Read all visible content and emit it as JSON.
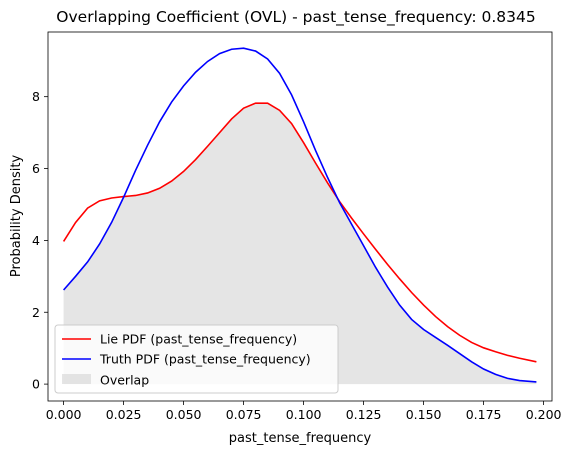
{
  "chart_data": {
    "type": "line",
    "title": "Overlapping Coefficient (OVL) - past_tense_frequency: 0.8345",
    "xlabel": "past_tense_frequency",
    "ylabel": "Probability Density",
    "xlim": [
      -0.0065,
      0.2035
    ],
    "ylim": [
      -0.47,
      9.8
    ],
    "xticks": [
      0.0,
      0.025,
      0.05,
      0.075,
      0.1,
      0.125,
      0.15,
      0.175,
      0.2
    ],
    "xtick_labels": [
      "0.000",
      "0.025",
      "0.050",
      "0.075",
      "0.100",
      "0.125",
      "0.150",
      "0.175",
      "0.200"
    ],
    "yticks": [
      0,
      2,
      4,
      6,
      8
    ],
    "ytick_labels": [
      "0",
      "2",
      "4",
      "6",
      "8"
    ],
    "grid": false,
    "legend_position": "lower-left",
    "series": [
      {
        "name": "Lie PDF (past_tense_frequency)",
        "color": "#ff0000",
        "x": [
          0.0,
          0.005,
          0.01,
          0.015,
          0.02,
          0.025,
          0.03,
          0.035,
          0.04,
          0.045,
          0.05,
          0.055,
          0.06,
          0.065,
          0.07,
          0.075,
          0.08,
          0.085,
          0.09,
          0.095,
          0.1,
          0.105,
          0.11,
          0.115,
          0.12,
          0.125,
          0.13,
          0.135,
          0.14,
          0.145,
          0.15,
          0.155,
          0.16,
          0.165,
          0.17,
          0.175,
          0.18,
          0.185,
          0.19,
          0.197
        ],
        "values": [
          3.97,
          4.5,
          4.9,
          5.1,
          5.18,
          5.22,
          5.25,
          5.32,
          5.45,
          5.65,
          5.92,
          6.25,
          6.62,
          7.0,
          7.38,
          7.68,
          7.82,
          7.82,
          7.62,
          7.25,
          6.72,
          6.15,
          5.6,
          5.08,
          4.62,
          4.18,
          3.75,
          3.33,
          2.93,
          2.55,
          2.2,
          1.88,
          1.6,
          1.36,
          1.16,
          1.01,
          0.9,
          0.8,
          0.72,
          0.62
        ]
      },
      {
        "name": "Truth PDF (past_tense_frequency)",
        "color": "#0000ff",
        "x": [
          0.0,
          0.005,
          0.01,
          0.015,
          0.02,
          0.025,
          0.03,
          0.035,
          0.04,
          0.045,
          0.05,
          0.055,
          0.06,
          0.065,
          0.07,
          0.075,
          0.08,
          0.085,
          0.09,
          0.095,
          0.1,
          0.105,
          0.11,
          0.115,
          0.12,
          0.125,
          0.13,
          0.135,
          0.14,
          0.145,
          0.15,
          0.155,
          0.16,
          0.165,
          0.17,
          0.175,
          0.18,
          0.185,
          0.19,
          0.197
        ],
        "values": [
          2.62,
          3.0,
          3.4,
          3.9,
          4.5,
          5.2,
          5.95,
          6.65,
          7.3,
          7.85,
          8.3,
          8.68,
          8.98,
          9.2,
          9.32,
          9.35,
          9.27,
          9.05,
          8.65,
          8.05,
          7.3,
          6.5,
          5.75,
          5.05,
          4.45,
          3.85,
          3.25,
          2.7,
          2.2,
          1.8,
          1.52,
          1.3,
          1.08,
          0.85,
          0.62,
          0.42,
          0.27,
          0.16,
          0.1,
          0.06
        ]
      }
    ],
    "fill": {
      "name": "Overlap",
      "color": "#d3d3d3",
      "opacity": 0.6,
      "description_of_values": "minimum of the two PDFs"
    }
  }
}
